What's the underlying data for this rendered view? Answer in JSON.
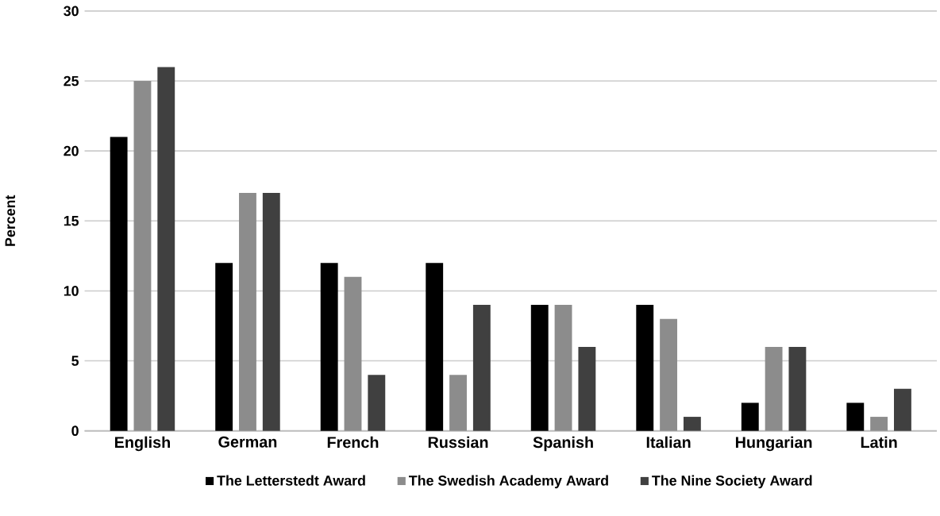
{
  "chart_data": {
    "type": "bar",
    "ylabel": "Percent",
    "categories": [
      "English",
      "German",
      "French",
      "Russian",
      "Spanish",
      "Italian",
      "Hungarian",
      "Latin"
    ],
    "series": [
      {
        "name": "The Letterstedt Award",
        "color": "#000000",
        "values": [
          21,
          12,
          12,
          12,
          9,
          9,
          2,
          2
        ]
      },
      {
        "name": "The Swedish Academy Award",
        "color": "#8c8c8c",
        "values": [
          25,
          17,
          11,
          4,
          9,
          8,
          6,
          1
        ]
      },
      {
        "name": "The Nine Society Award",
        "color": "#404040",
        "values": [
          26,
          17,
          4,
          9,
          6,
          1,
          6,
          3
        ]
      }
    ],
    "ylim": [
      0,
      30
    ],
    "yticks": [
      0,
      5,
      10,
      15,
      20,
      25,
      30
    ],
    "grid": "y",
    "legend": "bottom"
  }
}
